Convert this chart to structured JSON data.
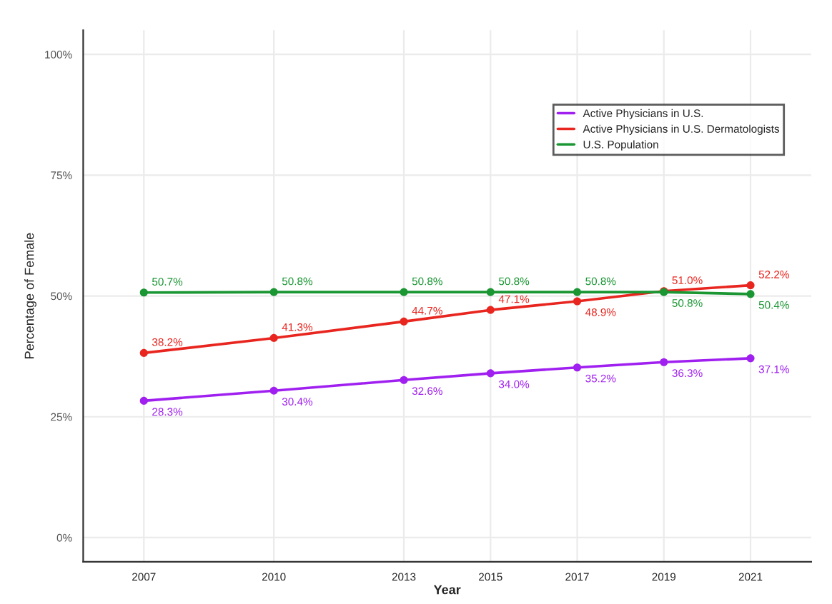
{
  "chart_data": {
    "type": "line",
    "xlabel": "Year",
    "ylabel": "Percentage of Female",
    "x": [
      2007,
      2010,
      2013,
      2015,
      2017,
      2019,
      2021
    ],
    "series": [
      {
        "name": "Active Physicians in U.S.",
        "color": "#a020f0",
        "values": [
          28.3,
          30.4,
          32.6,
          34.0,
          35.2,
          36.3,
          37.1
        ],
        "value_labels": [
          "28.3%",
          "30.4%",
          "32.6%",
          "34.0%",
          "35.2%",
          "36.3%",
          "37.1%"
        ]
      },
      {
        "name": "Active Physicians in U.S. Dermatologists",
        "color": "#e8261f",
        "values": [
          38.2,
          41.3,
          44.7,
          47.1,
          48.9,
          51.0,
          52.2
        ],
        "value_labels": [
          "38.2%",
          "41.3%",
          "44.7%",
          "47.1%",
          "48.9%",
          "51.0%",
          "52.2%"
        ]
      },
      {
        "name": "U.S. Population",
        "color": "#1a9633",
        "values": [
          50.7,
          50.8,
          50.8,
          50.8,
          50.8,
          50.8,
          50.4
        ],
        "value_labels": [
          "50.7%",
          "50.8%",
          "50.8%",
          "50.8%",
          "50.8%",
          "50.8%",
          "50.4%"
        ]
      }
    ],
    "xlim": [
      2005.6,
      2022.4
    ],
    "xticks": [
      2007,
      2010,
      2013,
      2015,
      2017,
      2019,
      2021
    ],
    "ylim": [
      -5,
      105
    ],
    "yticks": [
      {
        "value": 0,
        "label": "0%"
      },
      {
        "value": 25,
        "label": "25%"
      },
      {
        "value": 50,
        "label": "50%"
      },
      {
        "value": 75,
        "label": "75%"
      },
      {
        "value": 100,
        "label": "100%"
      }
    ],
    "grid": true,
    "legend": "top right",
    "marker": "circle",
    "line_style": "solid"
  }
}
